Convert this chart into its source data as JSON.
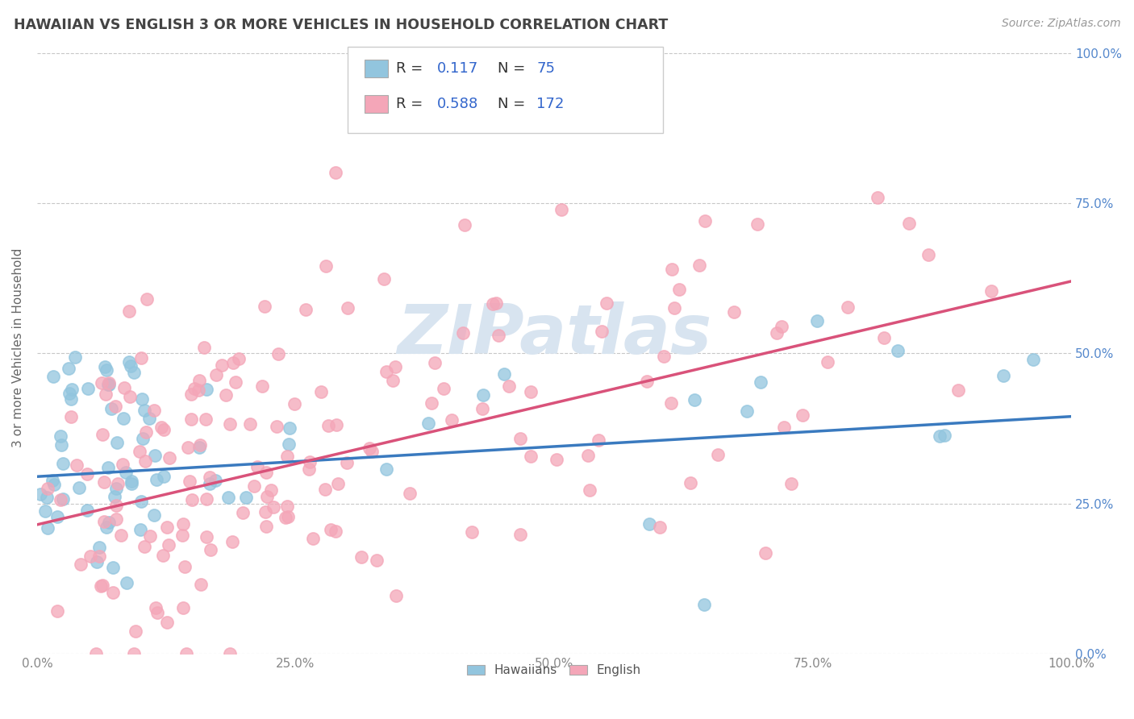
{
  "title": "HAWAIIAN VS ENGLISH 3 OR MORE VEHICLES IN HOUSEHOLD CORRELATION CHART",
  "source_text": "Source: ZipAtlas.com",
  "ylabel": "3 or more Vehicles in Household",
  "hawaiian_R": "0.117",
  "hawaiian_N": "75",
  "english_R": "0.588",
  "english_N": "172",
  "legend_labels": [
    "Hawaiians",
    "English"
  ],
  "blue_color": "#92c5de",
  "pink_color": "#f4a6b8",
  "blue_line_color": "#3a7abf",
  "pink_line_color": "#d9527a",
  "watermark_color": "#d8e4f0",
  "background_color": "#ffffff",
  "grid_color": "#c8c8c8",
  "title_color": "#444444",
  "axis_label_color": "#5588cc",
  "text_color_rn": "#3366cc",
  "hawaiian_seed": 12,
  "english_seed": 99
}
